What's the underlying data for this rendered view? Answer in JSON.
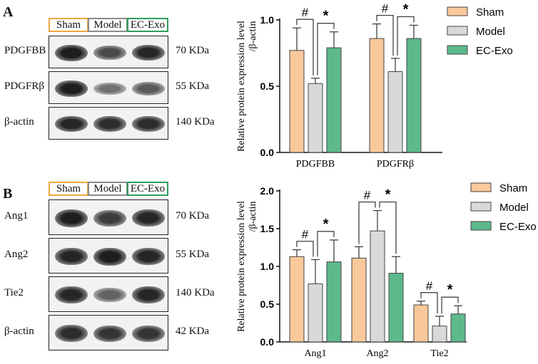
{
  "panels": [
    {
      "letter": "A",
      "groups": [
        "Sham",
        "Model",
        "EC-Exo"
      ],
      "group_colors": [
        "#F0A640",
        "#8A8A8A",
        "#2E9E5B"
      ],
      "blots": [
        {
          "protein": "PDGFBB",
          "kda": "70 KDa"
        },
        {
          "protein": "PDGFRβ",
          "kda": "55 KDa"
        },
        {
          "protein": "β-actin",
          "kda": "140 KDa"
        }
      ]
    },
    {
      "letter": "B",
      "groups": [
        "Sham",
        "Model",
        "EC-Exo"
      ],
      "group_colors": [
        "#F0A640",
        "#8A8A8A",
        "#2E9E5B"
      ],
      "blots": [
        {
          "protein": "Ang1",
          "kda": "70 KDa"
        },
        {
          "protein": "Ang2",
          "kda": "55 KDa"
        },
        {
          "protein": "Tie2",
          "kda": "140 KDa"
        },
        {
          "protein": "β-actin",
          "kda": "42 KDa"
        }
      ]
    }
  ],
  "chart_data": [
    {
      "type": "bar",
      "ylabel": "Relative protein expression level /β-actin",
      "ylim": [
        0,
        1.0
      ],
      "yticks": [
        "0.0",
        "0.5",
        "1.0"
      ],
      "categories": [
        "PDGFBB",
        "PDGFRβ"
      ],
      "series": [
        {
          "name": "Sham",
          "color": "#F9C89B",
          "values": [
            0.77,
            0.86
          ],
          "errors": [
            0.17,
            0.11
          ]
        },
        {
          "name": "Model",
          "color": "#D9D9D9",
          "values": [
            0.52,
            0.61
          ],
          "errors": [
            0.04,
            0.1
          ]
        },
        {
          "name": "EC-Exo",
          "color": "#5DB98A",
          "values": [
            0.79,
            0.86
          ],
          "errors": [
            0.12,
            0.1
          ]
        }
      ],
      "significance": [
        "#",
        "*"
      ],
      "legend_position": "right"
    },
    {
      "type": "bar",
      "ylabel": "Relative protein expression level /β-actin",
      "ylim": [
        0,
        2.0
      ],
      "yticks": [
        "0.0",
        "0.5",
        "1.0",
        "1.5",
        "2.0"
      ],
      "categories": [
        "Ang1",
        "Ang2",
        "Tie2"
      ],
      "series": [
        {
          "name": "Sham",
          "color": "#F9C89B",
          "values": [
            1.13,
            1.11,
            0.49
          ],
          "errors": [
            0.09,
            0.15,
            0.05
          ]
        },
        {
          "name": "Model",
          "color": "#D9D9D9",
          "values": [
            0.77,
            1.47,
            0.21
          ],
          "errors": [
            0.32,
            0.27,
            0.13
          ]
        },
        {
          "name": "EC-Exo",
          "color": "#5DB98A",
          "values": [
            1.06,
            0.91,
            0.37
          ],
          "errors": [
            0.29,
            0.22,
            0.11
          ]
        }
      ],
      "significance": [
        "#",
        "*"
      ],
      "legend_position": "right"
    }
  ]
}
